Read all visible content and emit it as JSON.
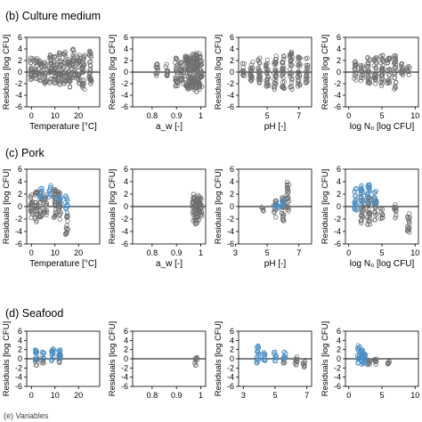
{
  "figure": {
    "footer": "(e) Variables"
  },
  "colors": {
    "grey_points": "#6e6e6e",
    "blue_points": "#4a8ec4",
    "axis": "#000000",
    "zero_line": "#000000"
  },
  "chart_data": [
    {
      "type": "scatter",
      "section": "(b) Culture medium",
      "panels": [
        {
          "xlabel": "Temperature [°C]",
          "xlim": [
            -2,
            29
          ],
          "xticks": [
            0,
            10,
            20
          ],
          "ylabel": "Residuals [log CFU]",
          "ylim": [
            -6,
            6
          ],
          "yticks": [
            -6,
            -4,
            -2,
            0,
            2,
            4,
            6
          ],
          "series": [
            {
              "color": "grey",
              "clusters": [
                [
                  0,
                  -1.5,
                  2.5
                ],
                [
                  2,
                  -1.5,
                  2.5
                ],
                [
                  4,
                  -1.5,
                  2
                ],
                [
                  6,
                  -2,
                  2
                ],
                [
                  8,
                  -2,
                  3
                ],
                [
                  10,
                  -2,
                  3
                ],
                [
                  12,
                  -2.5,
                  3.5
                ],
                [
                  14,
                  -2,
                  3.5
                ],
                [
                  16,
                  -3,
                  3
                ],
                [
                  18,
                  -1,
                  4
                ],
                [
                  20,
                  -2,
                  3
                ],
                [
                  22,
                  -3,
                  3
                ],
                [
                  25,
                  -2,
                  4
                ]
              ]
            }
          ]
        },
        {
          "xlabel": "a_w [-]",
          "xlim": [
            0.72,
            1.02
          ],
          "xticks": [
            0.8,
            0.9,
            1.0
          ],
          "ylabel": "Residuals [log CFU]",
          "ylim": [
            -6,
            6
          ],
          "yticks": [
            -6,
            -4,
            -2,
            0,
            2,
            4,
            6
          ],
          "series": [
            {
              "color": "grey",
              "clusters": [
                [
                  0.82,
                  -1,
                  1.5
                ],
                [
                  0.86,
                  -1,
                  1.5
                ],
                [
                  0.9,
                  -2.5,
                  2.5
                ],
                [
                  0.92,
                  -2,
                  2
                ],
                [
                  0.94,
                  -2.5,
                  3
                ],
                [
                  0.95,
                  -3,
                  3
                ],
                [
                  0.96,
                  -2.5,
                  3
                ],
                [
                  0.97,
                  -3,
                  3.5
                ],
                [
                  0.98,
                  -3.5,
                  3.5
                ],
                [
                  0.99,
                  -3,
                  3.5
                ],
                [
                  1.0,
                  -2.5,
                  3
                ]
              ]
            }
          ]
        },
        {
          "xlabel": "pH [-]",
          "xlim": [
            3.2,
            7.8
          ],
          "xticks": [
            5,
            7
          ],
          "ylabel": "Residuals [log CFU]",
          "ylim": [
            -6,
            6
          ],
          "yticks": [
            -6,
            -4,
            -2,
            0,
            2,
            4,
            6
          ],
          "series": [
            {
              "color": "grey",
              "clusters": [
                [
                  3.5,
                  -1,
                  1.5
                ],
                [
                  4.0,
                  -2,
                  2
                ],
                [
                  4.5,
                  -2,
                  2.5
                ],
                [
                  5.0,
                  -2.5,
                  2.5
                ],
                [
                  5.5,
                  -3,
                  3
                ],
                [
                  6.0,
                  -3,
                  3
                ],
                [
                  6.5,
                  -3,
                  3.5
                ],
                [
                  7.0,
                  -2.5,
                  3
                ],
                [
                  7.5,
                  -2,
                  2.5
                ]
              ]
            }
          ]
        },
        {
          "xlabel": "log N₀ [log CFU]",
          "xlim": [
            -0.5,
            10.5
          ],
          "xticks": [
            0,
            5,
            10
          ],
          "ylabel": "Residuals [log CFU]",
          "ylim": [
            -6,
            6
          ],
          "yticks": [
            -6,
            -4,
            -2,
            0,
            2,
            4,
            6
          ],
          "series": [
            {
              "color": "grey",
              "clusters": [
                [
                  1,
                  -1.5,
                  2
                ],
                [
                  2,
                  -1.5,
                  2
                ],
                [
                  3,
                  -2,
                  3
                ],
                [
                  4,
                  -2,
                  3
                ],
                [
                  5,
                  -2.5,
                  3
                ],
                [
                  6,
                  -2,
                  2.5
                ],
                [
                  7,
                  -3,
                  3
                ],
                [
                  8,
                  -1,
                  1.5
                ],
                [
                  9,
                  -0.5,
                  1
                ]
              ]
            }
          ]
        }
      ]
    },
    {
      "type": "scatter",
      "section": "(c) Pork",
      "panels": [
        {
          "xlabel": "Temperature [°C]",
          "xlim": [
            -2,
            29
          ],
          "xticks": [
            0,
            10,
            20
          ],
          "ylabel": "Residuals [log CFU]",
          "ylim": [
            -6,
            6
          ],
          "yticks": [
            -6,
            -4,
            -2,
            0,
            2,
            4,
            6
          ],
          "series": [
            {
              "color": "grey",
              "clusters": [
                [
                  0,
                  -2,
                  2
                ],
                [
                  2,
                  -2.5,
                  2.5
                ],
                [
                  4,
                  -2,
                  2.5
                ],
                [
                  6,
                  -1.5,
                  2
                ],
                [
                  10,
                  -2,
                  3
                ],
                [
                  12,
                  -2.5,
                  2.5
                ],
                [
                  15,
                  -4.5,
                  -1
                ]
              ]
            },
            {
              "color": "blue",
              "clusters": [
                [
                  4,
                  1,
                  3
                ],
                [
                  8,
                  1.5,
                  3.5
                ],
                [
                  12,
                  0.5,
                  2
                ],
                [
                  15,
                  -0.5,
                  2
                ]
              ]
            }
          ]
        },
        {
          "xlabel": "a_w [-]",
          "xlim": [
            0.72,
            1.02
          ],
          "xticks": [
            0.8,
            0.9,
            1.0
          ],
          "ylabel": "Residuals [log CFU]",
          "ylim": [
            -6,
            6
          ],
          "yticks": [
            -6,
            -4,
            -2,
            0,
            2,
            4,
            6
          ],
          "series": [
            {
              "color": "grey",
              "clusters": [
                [
                  0.97,
                  -2.5,
                  2
                ],
                [
                  0.98,
                  -3,
                  1.5
                ],
                [
                  0.99,
                  -2.5,
                  2
                ],
                [
                  1.0,
                  -2,
                  1.5
                ]
              ]
            }
          ]
        },
        {
          "xlabel": "pH [-]",
          "xlim": [
            3.2,
            7.8
          ],
          "xticks": [
            3,
            5,
            7
          ],
          "ylabel": "Residuals [log CFU]",
          "ylim": [
            -6,
            6
          ],
          "yticks": [
            -6,
            -4,
            -2,
            0,
            2,
            4,
            6
          ],
          "series": [
            {
              "color": "grey",
              "clusters": [
                [
                  4.7,
                  -0.8,
                  0
                ],
                [
                  5.5,
                  -2,
                  1
                ],
                [
                  6.0,
                  -2.5,
                  2
                ],
                [
                  6.3,
                  -1,
                  4
                ]
              ]
            },
            {
              "color": "blue",
              "clusters": [
                [
                  5.6,
                  -0.5,
                  1
                ],
                [
                  6.0,
                  0,
                  1.5
                ]
              ]
            }
          ]
        },
        {
          "xlabel": "log N₀ [log CFU]",
          "xlim": [
            -0.5,
            10.5
          ],
          "xticks": [
            0,
            5,
            10
          ],
          "ylabel": "Residuals [log CFU]",
          "ylim": [
            -6,
            6
          ],
          "yticks": [
            -6,
            -4,
            -2,
            0,
            2,
            4,
            6
          ],
          "series": [
            {
              "color": "grey",
              "clusters": [
                [
                  2,
                  -3,
                  2
                ],
                [
                  3,
                  -3,
                  2.5
                ],
                [
                  4,
                  -2.5,
                  1.5
                ],
                [
                  5,
                  -2,
                  0
                ],
                [
                  7,
                  -2,
                  0.5
                ],
                [
                  9,
                  -4.5,
                  -1
                ]
              ]
            },
            {
              "color": "blue",
              "clusters": [
                [
                  1,
                  -1,
                  3
                ],
                [
                  2,
                  0,
                  3.5
                ],
                [
                  3,
                  0.5,
                  4
                ],
                [
                  4,
                  0,
                  2.5
                ]
              ]
            }
          ]
        }
      ]
    },
    {
      "type": "scatter",
      "section": "(d) Seafood",
      "panels": [
        {
          "xlabel": "",
          "xlim": [
            -2,
            29
          ],
          "xticks": [
            0,
            10,
            20
          ],
          "ylabel": "Residuals [log CFU]",
          "ylim": [
            -6,
            6
          ],
          "yticks": [
            -6,
            -4,
            -2,
            0,
            2,
            4,
            6
          ],
          "series": [
            {
              "color": "grey",
              "clusters": [
                [
                  2,
                  -1.5,
                  0
                ],
                [
                  5,
                  -1,
                  0.5
                ],
                [
                  12,
                  -1,
                  1
                ]
              ]
            },
            {
              "color": "blue",
              "clusters": [
                [
                  2,
                  -0.5,
                  2
                ],
                [
                  5,
                  0,
                  1.5
                ],
                [
                  9,
                  -0.5,
                  2.5
                ],
                [
                  12,
                  0,
                  3
                ]
              ]
            }
          ]
        },
        {
          "xlabel": "",
          "xlim": [
            0.72,
            1.02
          ],
          "xticks": [
            0.8,
            0.9,
            1.0
          ],
          "ylabel": "Residuals [log CFU]",
          "ylim": [
            -6,
            6
          ],
          "yticks": [
            -6,
            -4,
            -2,
            0,
            2,
            4,
            6
          ],
          "series": [
            {
              "color": "grey",
              "clusters": [
                [
                  0.98,
                  -1.5,
                  0.5
                ]
              ]
            }
          ]
        },
        {
          "xlabel": "",
          "xlim": [
            2.7,
            7.3
          ],
          "xticks": [
            3,
            5,
            7
          ],
          "ylabel": "Residuals [log CFU]",
          "ylim": [
            -6,
            6
          ],
          "yticks": [
            -6,
            -4,
            -2,
            0,
            2,
            4,
            6
          ],
          "series": [
            {
              "color": "grey",
              "clusters": [
                [
                  5.6,
                  -1,
                  0.5
                ],
                [
                  6.3,
                  -1.5,
                  0.5
                ],
                [
                  6.8,
                  -2,
                  -0.5
                ]
              ]
            },
            {
              "color": "blue",
              "clusters": [
                [
                  3.9,
                  -1,
                  3
                ],
                [
                  4.3,
                  -0.5,
                  2
                ],
                [
                  5.0,
                  -0.5,
                  1.5
                ],
                [
                  5.6,
                  -0.5,
                  1.5
                ]
              ]
            }
          ]
        },
        {
          "xlabel": "",
          "xlim": [
            -0.5,
            10.5
          ],
          "xticks": [
            0,
            5,
            10
          ],
          "ylabel": "Residuals [log CFU]",
          "ylim": [
            -6,
            6
          ],
          "yticks": [
            -6,
            -4,
            -2,
            0,
            2,
            4,
            6
          ],
          "series": [
            {
              "color": "grey",
              "clusters": [
                [
                  3,
                  -1.5,
                  0.5
                ],
                [
                  4,
                  -1.5,
                  0
                ],
                [
                  6,
                  -1.5,
                  -0.5
                ]
              ]
            },
            {
              "color": "blue",
              "clusters": [
                [
                  1.5,
                  -1,
                  3
                ],
                [
                  2,
                  -1.5,
                  2
                ],
                [
                  2.5,
                  -1,
                  1.5
                ]
              ]
            }
          ]
        }
      ]
    }
  ]
}
